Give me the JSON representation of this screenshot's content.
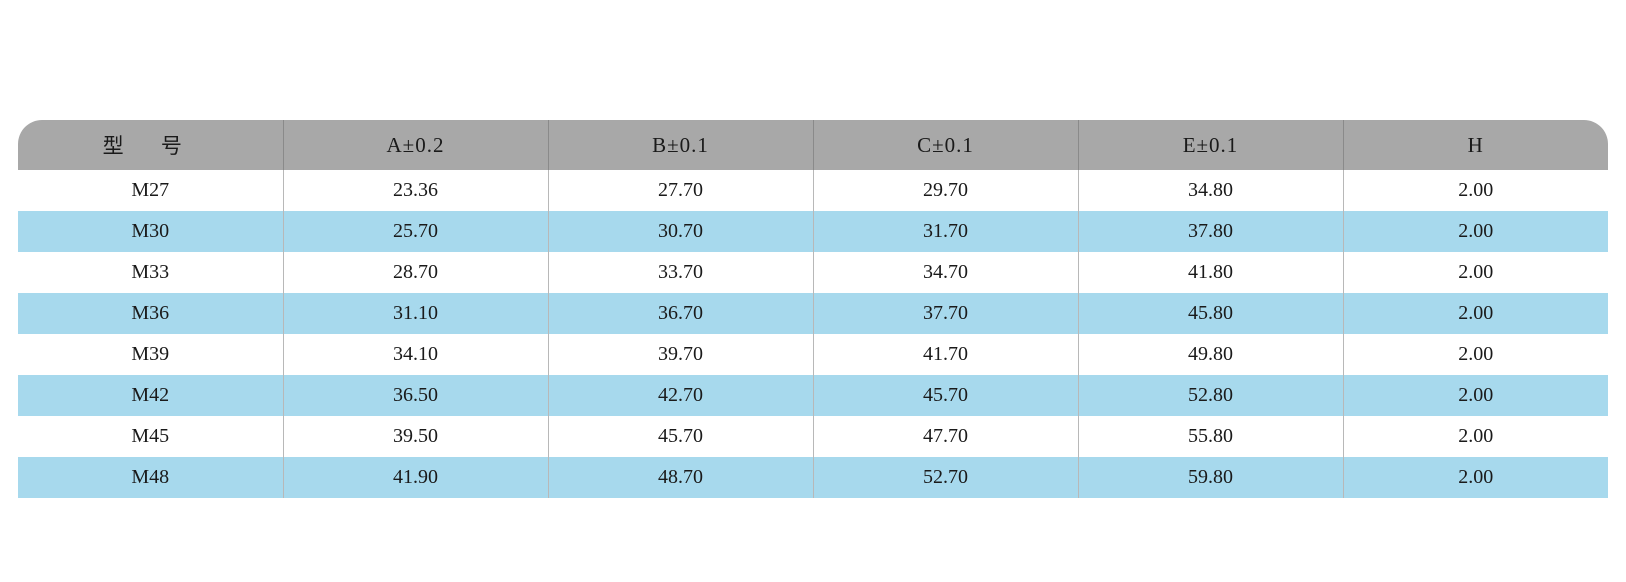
{
  "table": {
    "type": "table",
    "header_bg": "#a8a8a8",
    "row_alt_bg": "#a7d9ed",
    "row_bg": "#ffffff",
    "border_color": "#b8b8b8",
    "text_color": "#1a1a1a",
    "header_fontsize": 21,
    "cell_fontsize": 20,
    "columns": [
      {
        "key": "model",
        "label": "型 号",
        "width": "16.6%"
      },
      {
        "key": "a",
        "label": "A±0.2",
        "width": "16.6%"
      },
      {
        "key": "b",
        "label": "B±0.1",
        "width": "16.6%"
      },
      {
        "key": "c",
        "label": "C±0.1",
        "width": "16.6%"
      },
      {
        "key": "e",
        "label": "E±0.1",
        "width": "16.6%"
      },
      {
        "key": "h",
        "label": "H",
        "width": "16.6%"
      }
    ],
    "rows": [
      [
        "M27",
        "23.36",
        "27.70",
        "29.70",
        "34.80",
        "2.00"
      ],
      [
        "M30",
        "25.70",
        "30.70",
        "31.70",
        "37.80",
        "2.00"
      ],
      [
        "M33",
        "28.70",
        "33.70",
        "34.70",
        "41.80",
        "2.00"
      ],
      [
        "M36",
        "31.10",
        "36.70",
        "37.70",
        "45.80",
        "2.00"
      ],
      [
        "M39",
        "34.10",
        "39.70",
        "41.70",
        "49.80",
        "2.00"
      ],
      [
        "M42",
        "36.50",
        "42.70",
        "45.70",
        "52.80",
        "2.00"
      ],
      [
        "M45",
        "39.50",
        "45.70",
        "47.70",
        "55.80",
        "2.00"
      ],
      [
        "M48",
        "41.90",
        "48.70",
        "52.70",
        "59.80",
        "2.00"
      ]
    ]
  }
}
